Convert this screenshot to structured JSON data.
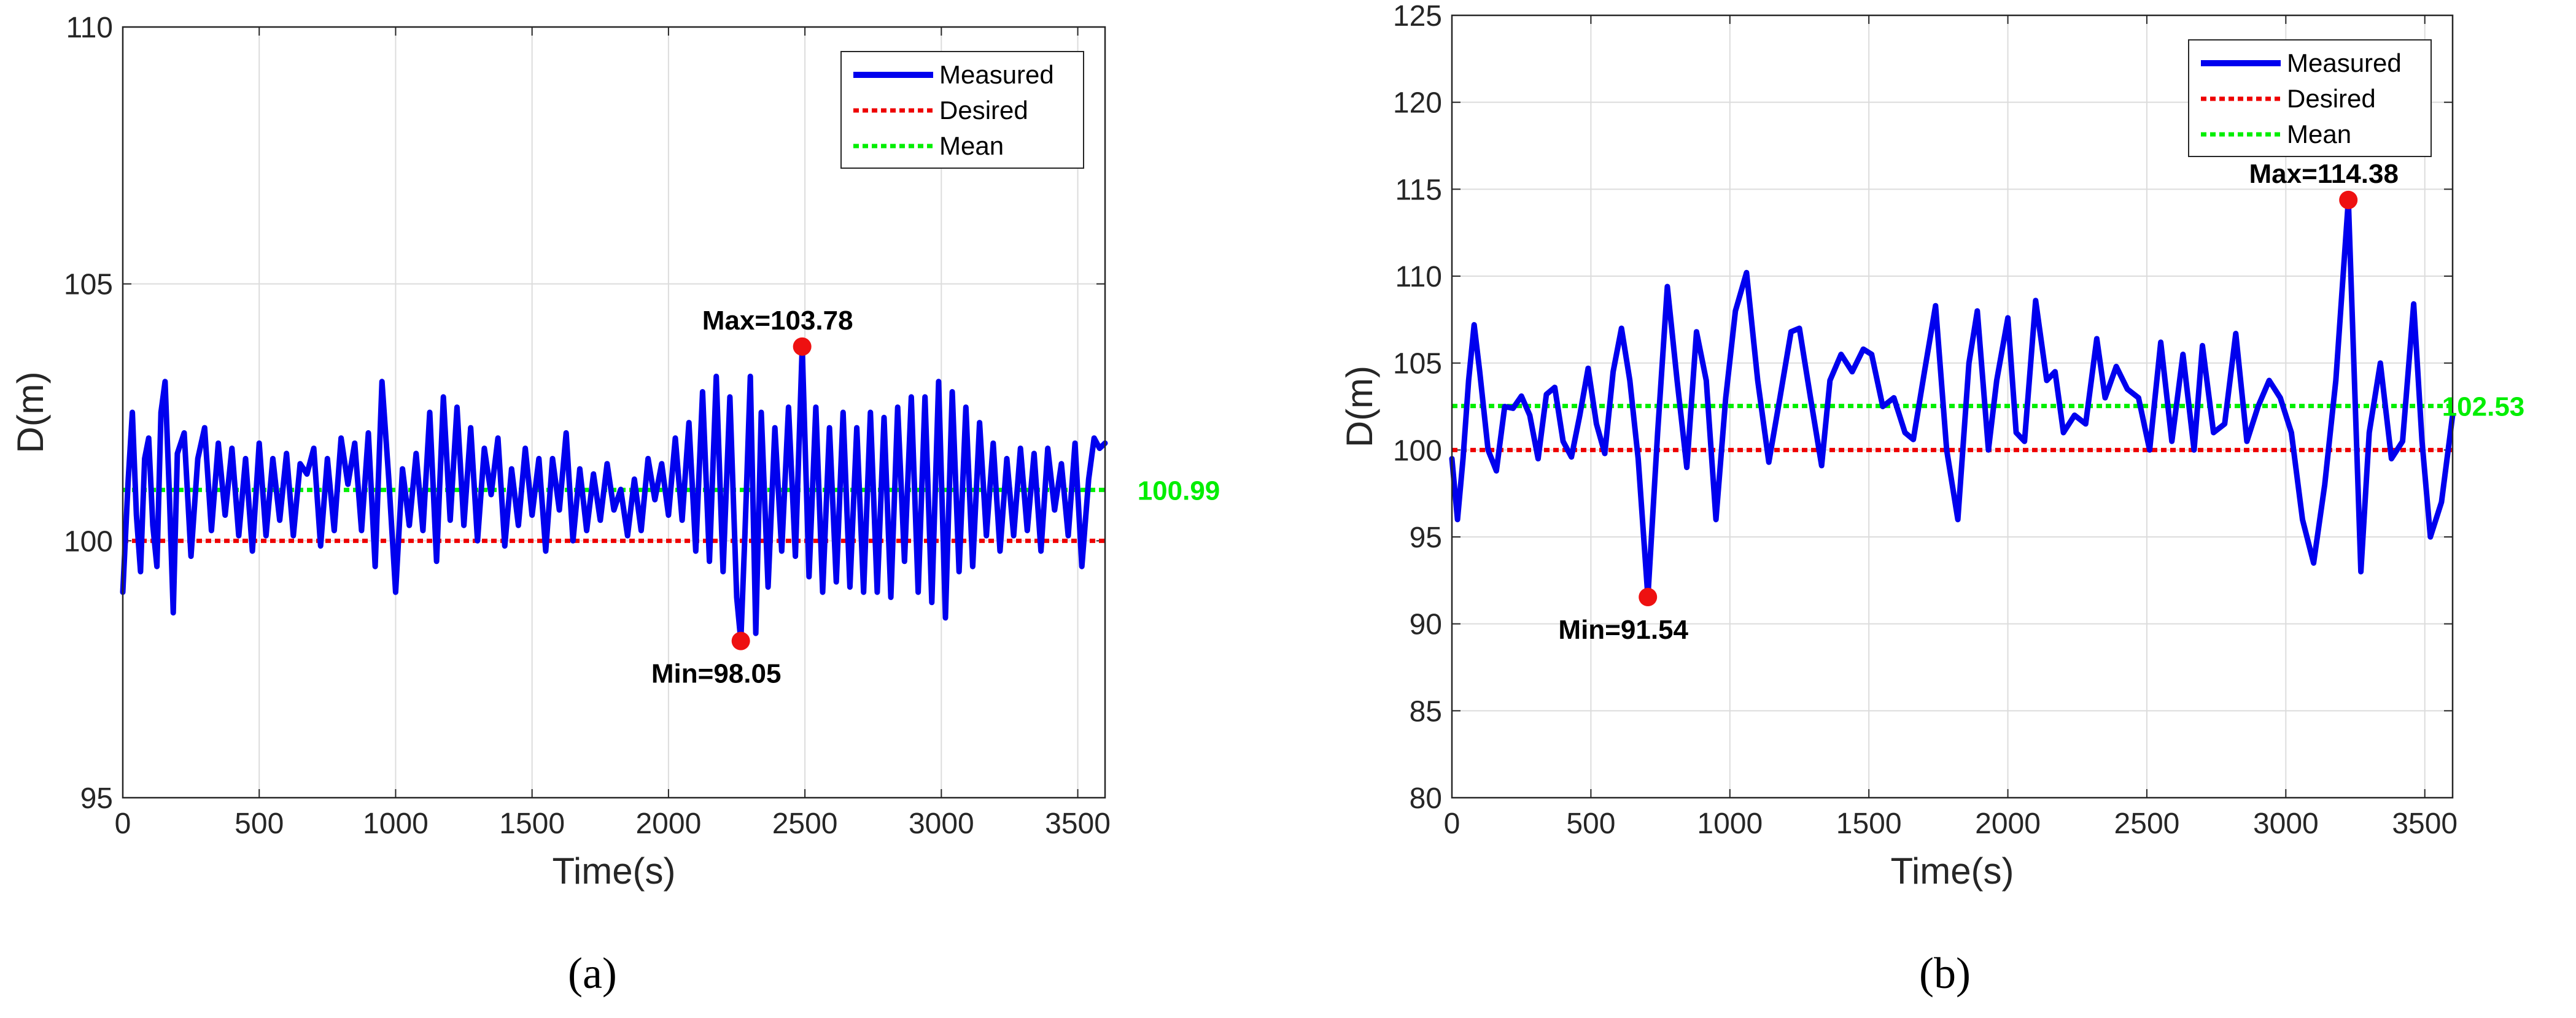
{
  "captions": [
    "(a)",
    "(b)"
  ],
  "legend": [
    "Measured",
    "Desired",
    "Mean"
  ],
  "colors": {
    "measured": "#0000ee",
    "desired": "#ee0000",
    "mean": "#00ee00",
    "marker": "#ee1111",
    "grid": "#dcdcdc"
  },
  "chart_data": [
    {
      "type": "line",
      "caption": "(a)",
      "xlabel": "Time(s)",
      "ylabel": "D(m)",
      "xlim": [
        0,
        3600
      ],
      "ylim": [
        95,
        110
      ],
      "xticks": [
        0,
        500,
        1000,
        1500,
        2000,
        2500,
        3000,
        3500
      ],
      "yticks": [
        95,
        100,
        105,
        110
      ],
      "grid": true,
      "legend_position": "top-right",
      "desired": 100,
      "mean": 100.99,
      "mean_label": "100.99",
      "max": {
        "x": 2490,
        "y": 103.78,
        "label": "Max=103.78"
      },
      "min": {
        "x": 2265,
        "y": 98.05,
        "label": "Min=98.05"
      },
      "series": [
        {
          "name": "Measured",
          "x": [
            0,
            20,
            35,
            50,
            65,
            80,
            95,
            110,
            125,
            140,
            155,
            170,
            185,
            200,
            225,
            250,
            275,
            300,
            325,
            350,
            375,
            400,
            425,
            450,
            475,
            500,
            525,
            550,
            575,
            600,
            625,
            650,
            675,
            700,
            725,
            750,
            775,
            800,
            825,
            850,
            875,
            900,
            925,
            950,
            975,
            1000,
            1025,
            1050,
            1075,
            1100,
            1125,
            1150,
            1175,
            1200,
            1225,
            1250,
            1275,
            1300,
            1325,
            1350,
            1375,
            1400,
            1425,
            1450,
            1475,
            1500,
            1525,
            1550,
            1575,
            1600,
            1625,
            1650,
            1675,
            1700,
            1725,
            1750,
            1775,
            1800,
            1825,
            1850,
            1875,
            1900,
            1925,
            1950,
            1975,
            2000,
            2025,
            2050,
            2075,
            2100,
            2125,
            2150,
            2175,
            2200,
            2225,
            2250,
            2265,
            2280,
            2300,
            2320,
            2340,
            2365,
            2390,
            2415,
            2440,
            2465,
            2490,
            2515,
            2540,
            2565,
            2590,
            2615,
            2640,
            2665,
            2690,
            2715,
            2740,
            2765,
            2790,
            2815,
            2840,
            2865,
            2890,
            2915,
            2940,
            2965,
            2990,
            3015,
            3040,
            3065,
            3090,
            3115,
            3140,
            3165,
            3190,
            3215,
            3240,
            3265,
            3290,
            3315,
            3340,
            3365,
            3390,
            3415,
            3440,
            3465,
            3490,
            3515,
            3540,
            3560,
            3580,
            3600
          ],
          "values": [
            99.0,
            101.2,
            102.5,
            100.5,
            99.4,
            101.6,
            102.0,
            100.3,
            99.5,
            102.5,
            103.1,
            101.0,
            98.6,
            101.7,
            102.1,
            99.7,
            101.6,
            102.2,
            100.2,
            101.9,
            100.5,
            101.8,
            100.1,
            101.6,
            99.8,
            101.9,
            100.1,
            101.6,
            100.4,
            101.7,
            100.1,
            101.5,
            101.3,
            101.8,
            99.9,
            101.6,
            100.2,
            102.0,
            101.1,
            101.9,
            100.2,
            102.1,
            99.5,
            103.1,
            101.2,
            99.0,
            101.4,
            100.3,
            101.7,
            100.2,
            102.5,
            99.6,
            102.8,
            100.4,
            102.6,
            100.3,
            102.2,
            100.0,
            101.8,
            100.9,
            102.0,
            99.9,
            101.4,
            100.3,
            101.8,
            100.5,
            101.6,
            99.8,
            101.6,
            100.6,
            102.1,
            100.0,
            101.4,
            100.2,
            101.3,
            100.4,
            101.5,
            100.6,
            101.0,
            100.1,
            101.2,
            100.2,
            101.6,
            100.8,
            101.5,
            100.5,
            102.0,
            100.4,
            102.3,
            99.8,
            102.9,
            99.6,
            103.2,
            99.4,
            102.8,
            98.9,
            98.05,
            100.1,
            103.2,
            98.2,
            102.5,
            99.1,
            102.2,
            99.8,
            102.6,
            99.7,
            103.78,
            99.3,
            102.6,
            99.0,
            102.2,
            99.2,
            102.5,
            99.1,
            102.2,
            99.0,
            102.5,
            99.0,
            102.4,
            98.9,
            102.6,
            99.6,
            102.8,
            99.0,
            102.8,
            98.8,
            103.1,
            98.5,
            102.9,
            99.4,
            102.6,
            99.5,
            102.3,
            100.1,
            101.9,
            99.8,
            101.6,
            100.1,
            101.8,
            100.2,
            101.7,
            99.8,
            101.8,
            100.6,
            101.5,
            100.1,
            101.9,
            99.5,
            101.2,
            102.0,
            101.8,
            101.9
          ]
        }
      ]
    },
    {
      "type": "line",
      "caption": "(b)",
      "xlabel": "Time(s)",
      "ylabel": "D(m)",
      "xlim": [
        0,
        3600
      ],
      "ylim": [
        80,
        125
      ],
      "xticks": [
        0,
        500,
        1000,
        1500,
        2000,
        2500,
        3000,
        3500
      ],
      "yticks": [
        80,
        85,
        90,
        95,
        100,
        105,
        110,
        115,
        120,
        125
      ],
      "grid": true,
      "legend_position": "top-right",
      "desired": 100,
      "mean": 102.53,
      "mean_label": "102.53",
      "max": {
        "x": 3225,
        "y": 114.38,
        "label": "Max=114.38"
      },
      "min": {
        "x": 705,
        "y": 91.54,
        "label": "Min=91.54"
      },
      "series": [
        {
          "name": "Measured",
          "x": [
            0,
            20,
            40,
            60,
            80,
            100,
            130,
            160,
            190,
            220,
            250,
            280,
            310,
            340,
            370,
            400,
            430,
            460,
            490,
            520,
            550,
            580,
            610,
            640,
            670,
            705,
            740,
            775,
            810,
            845,
            880,
            915,
            950,
            985,
            1020,
            1060,
            1100,
            1140,
            1180,
            1220,
            1250,
            1290,
            1330,
            1360,
            1400,
            1440,
            1480,
            1510,
            1550,
            1590,
            1630,
            1660,
            1700,
            1740,
            1780,
            1820,
            1860,
            1890,
            1930,
            1960,
            2000,
            2030,
            2060,
            2100,
            2140,
            2170,
            2200,
            2240,
            2280,
            2320,
            2350,
            2390,
            2430,
            2470,
            2510,
            2550,
            2590,
            2630,
            2670,
            2700,
            2740,
            2780,
            2820,
            2860,
            2900,
            2940,
            2980,
            3020,
            3060,
            3100,
            3140,
            3180,
            3225,
            3270,
            3300,
            3340,
            3380,
            3420,
            3460,
            3490,
            3520,
            3560,
            3600
          ],
          "values": [
            99.5,
            96.0,
            99.5,
            104.0,
            107.2,
            104.5,
            100.0,
            98.8,
            102.5,
            102.4,
            103.1,
            102.0,
            99.5,
            103.2,
            103.6,
            100.5,
            99.6,
            102.0,
            104.7,
            101.5,
            99.8,
            104.5,
            107.0,
            104.0,
            99.5,
            91.54,
            101.0,
            109.4,
            104.0,
            99.0,
            106.8,
            104.0,
            96.0,
            103.0,
            108.0,
            110.2,
            104.0,
            99.3,
            103.0,
            106.8,
            107.0,
            103.0,
            99.1,
            104.0,
            105.5,
            104.5,
            105.8,
            105.5,
            102.5,
            103.0,
            101.0,
            100.6,
            104.5,
            108.3,
            100.0,
            96.0,
            105.0,
            108.0,
            100.0,
            104.0,
            107.6,
            101.0,
            100.5,
            108.6,
            104.0,
            104.5,
            101.0,
            102.0,
            101.5,
            106.4,
            103.0,
            104.8,
            103.5,
            103.0,
            100.0,
            106.2,
            100.5,
            105.5,
            100.0,
            106.0,
            101.0,
            101.5,
            106.7,
            100.5,
            102.5,
            104.0,
            103.0,
            101.0,
            96.0,
            93.5,
            98.0,
            104.0,
            114.38,
            93.0,
            101.0,
            105.0,
            99.5,
            100.5,
            108.4,
            100.5,
            95.0,
            97.0,
            102.0
          ]
        }
      ]
    }
  ]
}
